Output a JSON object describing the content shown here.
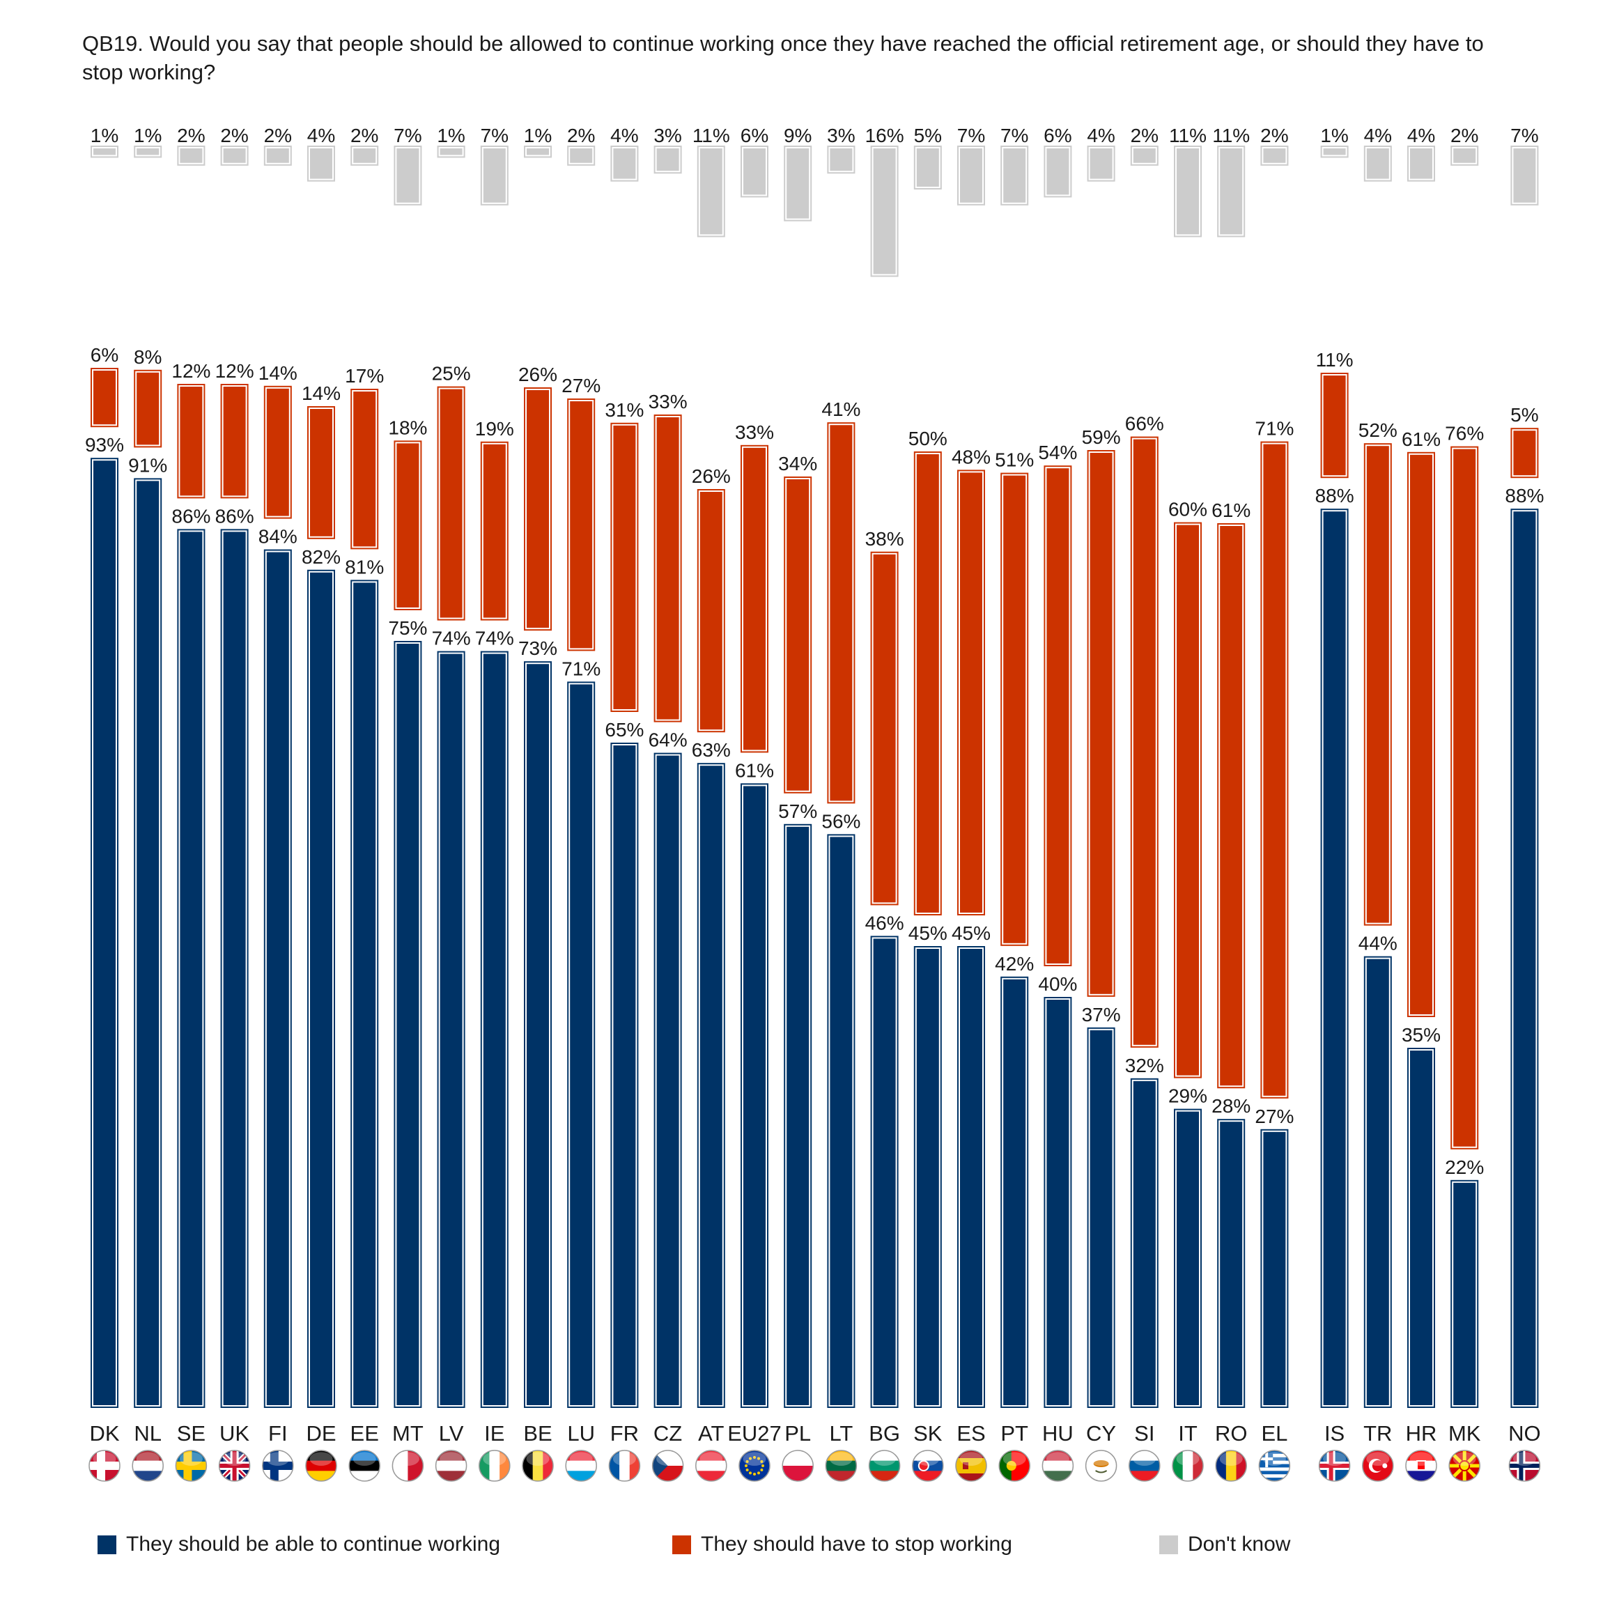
{
  "question": "QB19. Would you say that people should be allowed to continue working once they have reached the official retirement age, or should they have to stop working?",
  "legend": [
    {
      "label": "They should be able to continue working",
      "color": "#003366"
    },
    {
      "label": "They should have to stop working",
      "color": "#cc3300"
    },
    {
      "label": "Don't know",
      "color": "#cccccc"
    }
  ],
  "chart_data": {
    "type": "bar",
    "value_format": "percent",
    "groups": [
      [
        "DK",
        "NL",
        "SE",
        "UK",
        "FI",
        "DE",
        "EE",
        "MT",
        "LV",
        "IE",
        "BE",
        "LU",
        "FR",
        "CZ",
        "AT",
        "EU27",
        "PL",
        "LT",
        "BG",
        "SK",
        "ES",
        "PT",
        "HU",
        "CY",
        "SI",
        "IT",
        "RO",
        "EL"
      ],
      [
        "IS",
        "TR",
        "HR",
        "MK"
      ],
      [
        "NO"
      ]
    ],
    "categories": [
      "DK",
      "NL",
      "SE",
      "UK",
      "FI",
      "DE",
      "EE",
      "MT",
      "LV",
      "IE",
      "BE",
      "LU",
      "FR",
      "CZ",
      "AT",
      "EU27",
      "PL",
      "LT",
      "BG",
      "SK",
      "ES",
      "PT",
      "HU",
      "CY",
      "SI",
      "IT",
      "RO",
      "EL",
      "IS",
      "TR",
      "HR",
      "MK",
      "NO"
    ],
    "series": [
      {
        "name": "They should be able to continue working",
        "color": "#003366",
        "values": [
          93,
          91,
          86,
          86,
          84,
          82,
          81,
          75,
          74,
          74,
          73,
          71,
          65,
          64,
          63,
          61,
          57,
          56,
          46,
          45,
          45,
          42,
          40,
          37,
          32,
          29,
          28,
          27,
          88,
          44,
          35,
          22,
          88
        ]
      },
      {
        "name": "They should have to stop working",
        "color": "#cc3300",
        "values": [
          6,
          8,
          12,
          12,
          14,
          14,
          17,
          18,
          25,
          19,
          26,
          27,
          31,
          33,
          26,
          33,
          34,
          41,
          38,
          50,
          48,
          51,
          54,
          59,
          66,
          60,
          61,
          71,
          11,
          52,
          61,
          76,
          5
        ]
      },
      {
        "name": "Don't know",
        "color": "#cccccc",
        "values": [
          1,
          1,
          2,
          2,
          2,
          4,
          2,
          7,
          1,
          7,
          1,
          2,
          4,
          3,
          11,
          6,
          9,
          3,
          16,
          5,
          7,
          7,
          6,
          4,
          2,
          11,
          11,
          2,
          1,
          4,
          4,
          2,
          7
        ]
      }
    ],
    "flags": {
      "DK": "denmark-flag-icon",
      "NL": "netherlands-flag-icon",
      "SE": "sweden-flag-icon",
      "UK": "uk-flag-icon",
      "FI": "finland-flag-icon",
      "DE": "germany-flag-icon",
      "EE": "estonia-flag-icon",
      "MT": "malta-flag-icon",
      "LV": "latvia-flag-icon",
      "IE": "ireland-flag-icon",
      "BE": "belgium-flag-icon",
      "LU": "luxembourg-flag-icon",
      "FR": "france-flag-icon",
      "CZ": "czech-flag-icon",
      "AT": "austria-flag-icon",
      "EU27": "eu-flag-icon",
      "PL": "poland-flag-icon",
      "LT": "lithuania-flag-icon",
      "BG": "bulgaria-flag-icon",
      "SK": "slovakia-flag-icon",
      "ES": "spain-flag-icon",
      "PT": "portugal-flag-icon",
      "HU": "hungary-flag-icon",
      "CY": "cyprus-flag-icon",
      "SI": "slovenia-flag-icon",
      "IT": "italy-flag-icon",
      "RO": "romania-flag-icon",
      "EL": "greece-flag-icon",
      "IS": "iceland-flag-icon",
      "TR": "turkey-flag-icon",
      "HR": "croatia-flag-icon",
      "MK": "north-macedonia-flag-icon",
      "NO": "norway-flag-icon"
    }
  }
}
